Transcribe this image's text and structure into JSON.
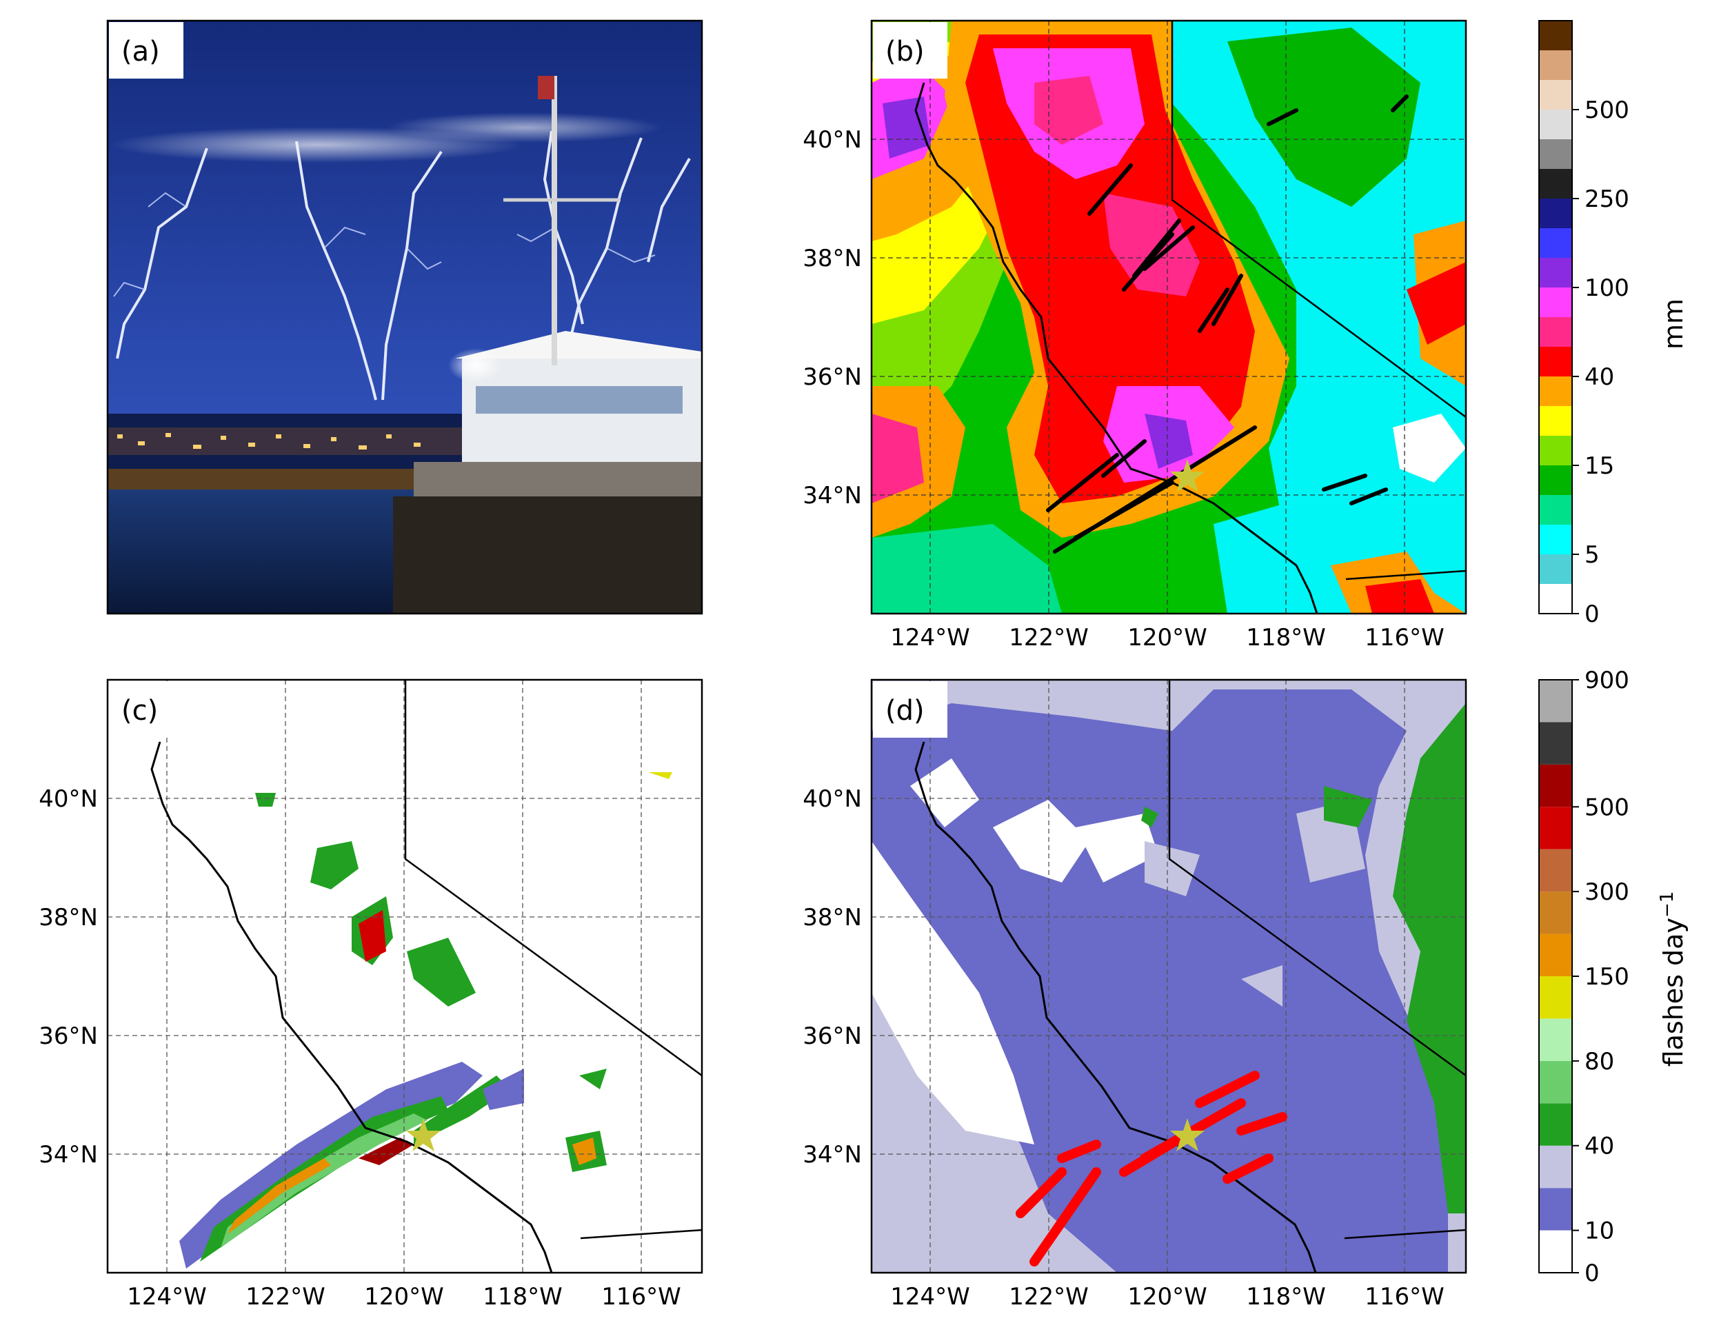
{
  "panels": {
    "a": {
      "label": "(a)"
    },
    "b": {
      "label": "(b)"
    },
    "c": {
      "label": "(c)"
    },
    "d": {
      "label": "(d)"
    }
  },
  "axes": {
    "lat_ticks": [
      "40°N",
      "38°N",
      "36°N",
      "34°N"
    ],
    "lon_ticks": [
      "124°W",
      "122°W",
      "120°W",
      "118°W",
      "116°W"
    ]
  },
  "precip_colorbar": {
    "unit": "mm",
    "ticks": [
      "0",
      "5",
      "15",
      "40",
      "100",
      "250",
      "500"
    ],
    "colors": [
      "#ffffff",
      "#4fd0d6",
      "#00ffff",
      "#00e08a",
      "#00b400",
      "#7ee000",
      "#ffff00",
      "#ffa500",
      "#ff0000",
      "#ff2a8a",
      "#ff40ff",
      "#8a2be2",
      "#3b3bff",
      "#1a1a8a",
      "#202020",
      "#888888",
      "#dddddd",
      "#efd6bf",
      "#d9a47a",
      "#5a2d00"
    ]
  },
  "lightning_colorbar": {
    "unit": "flashes day",
    "unit_exponent": "−1",
    "ticks": [
      "0",
      "10",
      "40",
      "80",
      "150",
      "300",
      "500",
      "900"
    ],
    "colors": [
      "#ffffff",
      "#6a6ac8",
      "#c4c4e0",
      "#22a022",
      "#6ccd6c",
      "#b0f0b0",
      "#e0e000",
      "#e89000",
      "#cc8020",
      "#c06838",
      "#d20000",
      "#a00000",
      "#383838",
      "#aaaaaa"
    ]
  },
  "markers": {
    "star_color": "#c8c83a",
    "flash_color": "#ff0000"
  }
}
